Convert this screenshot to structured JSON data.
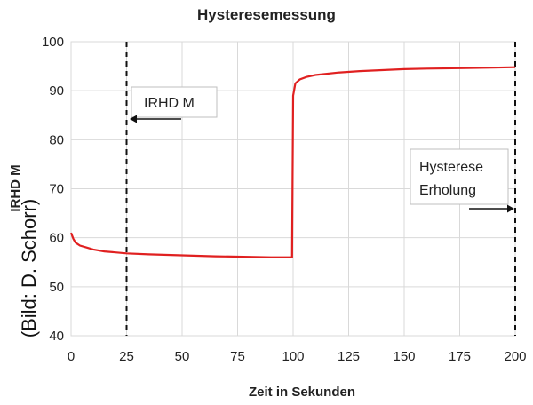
{
  "chart_data": {
    "type": "line",
    "title": "Hysteresemessung",
    "xlabel": "Zeit in Sekunden",
    "ylabel": "IRHD M",
    "xlim": [
      0,
      200
    ],
    "ylim": [
      40,
      100
    ],
    "xticks": [
      "0",
      "25",
      "50",
      "75",
      "100",
      "125",
      "150",
      "175",
      "200"
    ],
    "yticks": [
      "40",
      "50",
      "60",
      "70",
      "80",
      "90",
      "100"
    ],
    "grid": true,
    "series": [
      {
        "color": "#e02020",
        "points": [
          [
            0,
            61
          ],
          [
            1,
            59.8
          ],
          [
            2,
            59
          ],
          [
            4,
            58.4
          ],
          [
            7,
            58
          ],
          [
            10,
            57.6
          ],
          [
            15,
            57.2
          ],
          [
            20,
            57
          ],
          [
            25,
            56.8
          ],
          [
            35,
            56.6
          ],
          [
            50,
            56.4
          ],
          [
            65,
            56.2
          ],
          [
            80,
            56.1
          ],
          [
            90,
            56
          ],
          [
            95,
            56
          ],
          [
            99.5,
            56
          ],
          [
            100,
            89
          ],
          [
            101,
            91.5
          ],
          [
            103,
            92.3
          ],
          [
            106,
            92.8
          ],
          [
            110,
            93.2
          ],
          [
            120,
            93.7
          ],
          [
            130,
            94
          ],
          [
            140,
            94.2
          ],
          [
            150,
            94.4
          ],
          [
            160,
            94.5
          ],
          [
            175,
            94.6
          ],
          [
            190,
            94.7
          ],
          [
            200,
            94.8
          ]
        ]
      }
    ],
    "reference_lines": [
      {
        "x": 25,
        "style": "dashed"
      },
      {
        "x": 200,
        "style": "dashed"
      }
    ],
    "annotations": [
      {
        "text_lines": [
          "IRHD M"
        ],
        "arrow": "left"
      },
      {
        "text_lines": [
          "Hysterese",
          "Erholung"
        ],
        "arrow": "right"
      }
    ]
  },
  "credit": "(Bild: D. Schorr)"
}
